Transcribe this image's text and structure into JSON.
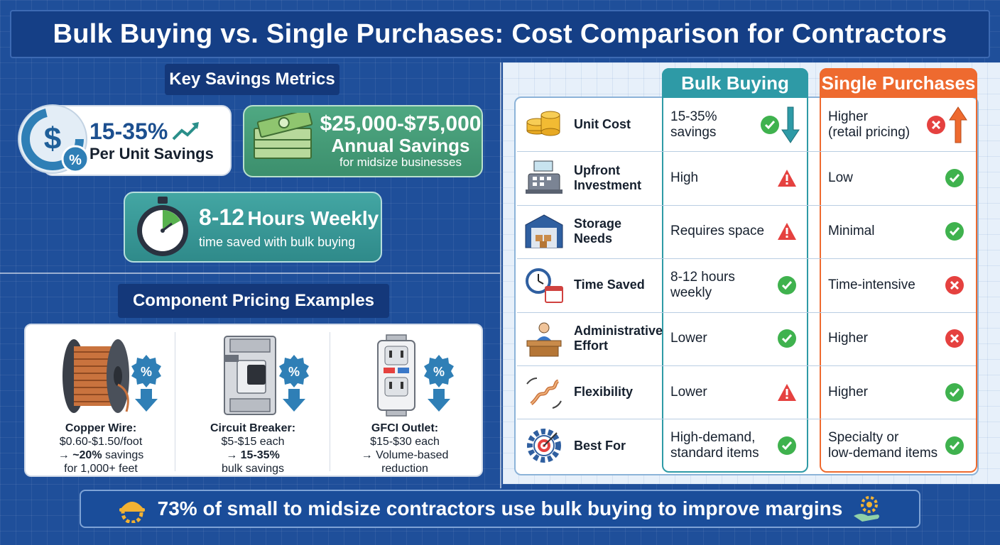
{
  "title": "Bulk Buying vs. Single Purchases: Cost Comparison for Contractors",
  "key_metrics": {
    "heading": "Key Savings Metrics",
    "per_unit": {
      "value": "15-35%",
      "label": "Per Unit Savings"
    },
    "annual": {
      "value": "$25,000-$75,000",
      "label": "Annual Savings",
      "sub": "for midsize businesses"
    },
    "weekly": {
      "value": "8-12",
      "value_suffix": "Hours Weekly",
      "sub": "time saved with bulk buying"
    }
  },
  "component_pricing": {
    "heading": "Component Pricing Examples",
    "items": [
      {
        "name": "Copper Wire:",
        "line1": "$0.60-$1.50/foot",
        "arrow": "→",
        "bold": "~20%",
        "line2_rest": " savings",
        "line3": "for 1,000+ feet"
      },
      {
        "name": "Circuit Breaker:",
        "line1": "$5-$15 each",
        "arrow": "→",
        "bold": "15-35%",
        "line2_rest": "",
        "line3": "bulk savings"
      },
      {
        "name": "GFCI Outlet:",
        "line1": "$15-$30 each",
        "arrow": "→",
        "bold": "",
        "line2_rest": " Volume-based",
        "line3": "reduction"
      }
    ]
  },
  "comparison": {
    "bulk_header": "Bulk Buying",
    "single_header": "Single Purchases",
    "rows": [
      {
        "feature": [
          "Unit Cost"
        ],
        "icon": "coins-icon",
        "bulk": [
          "15-35% savings"
        ],
        "bulk_status": "good",
        "bulk_extra": "down-arrow",
        "single": [
          "Higher",
          "(retail pricing)"
        ],
        "single_status": "bad",
        "single_extra": "up-arrow"
      },
      {
        "feature": [
          "Upfront",
          "Investment"
        ],
        "icon": "cash-register-icon",
        "bulk": [
          "High"
        ],
        "bulk_status": "warn",
        "single": [
          "Low"
        ],
        "single_status": "good"
      },
      {
        "feature": [
          "Storage Needs"
        ],
        "icon": "warehouse-icon",
        "bulk": [
          "Requires space"
        ],
        "bulk_status": "warn",
        "single": [
          "Minimal"
        ],
        "single_status": "good"
      },
      {
        "feature": [
          "Time Saved"
        ],
        "icon": "clock-calendar-icon",
        "bulk": [
          "8-12 hours weekly"
        ],
        "bulk_status": "good",
        "single": [
          "Time-intensive"
        ],
        "single_status": "bad"
      },
      {
        "feature": [
          "Administrative",
          "Effort"
        ],
        "icon": "desk-worker-icon",
        "bulk": [
          "Lower"
        ],
        "bulk_status": "good",
        "single": [
          "Higher"
        ],
        "single_status": "bad"
      },
      {
        "feature": [
          "Flexibility"
        ],
        "icon": "spring-icon",
        "bulk": [
          "Lower"
        ],
        "bulk_status": "warn",
        "single": [
          "Higher"
        ],
        "single_status": "good"
      },
      {
        "feature": [
          "Best For"
        ],
        "icon": "gear-target-icon",
        "bulk": [
          "High-demand,",
          "standard items"
        ],
        "bulk_status": "good",
        "single": [
          "Specialty or",
          "low-demand items"
        ],
        "single_status": "good"
      }
    ]
  },
  "footer": "73% of small to midsize contractors use bulk buying to improve margins",
  "colors": {
    "bulk_header": "#2e9aa6",
    "single_header": "#ee6a2f",
    "good": "#3fb24e",
    "bad": "#e5413f",
    "warn": "#e5413f"
  }
}
